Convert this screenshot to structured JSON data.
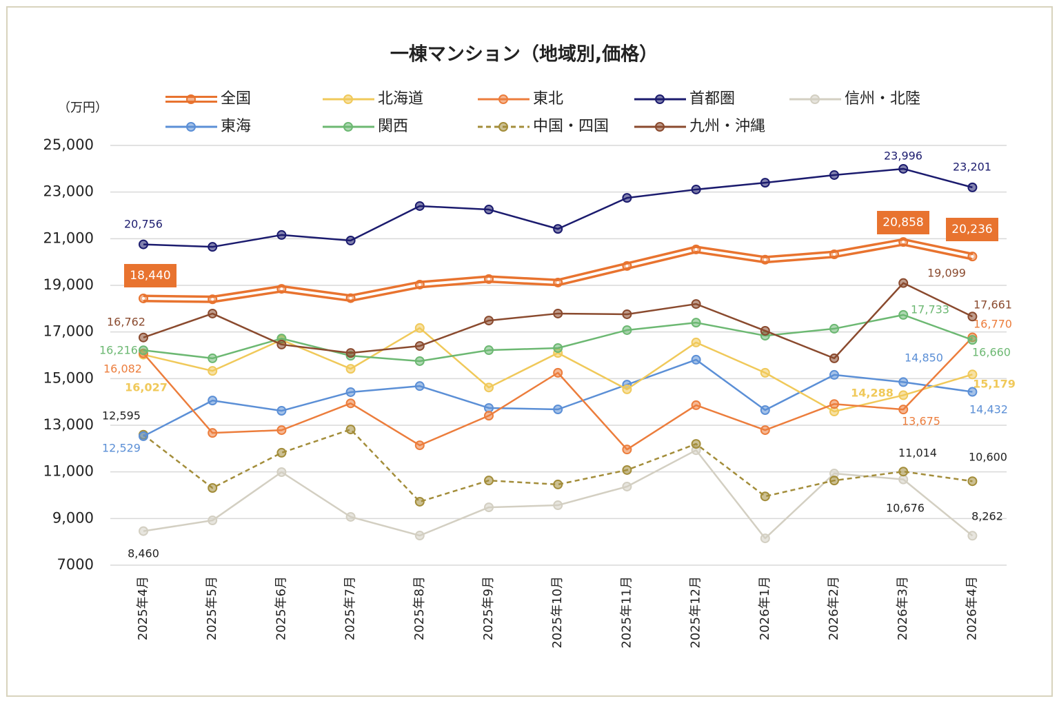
{
  "chart_data": {
    "type": "line",
    "title": "一棟マンション（地域別,価格）",
    "y_unit": "（万円）",
    "categories": [
      "2025年4月",
      "2025年5月",
      "2025年6月",
      "2025年7月",
      "2025年8月",
      "2025年9月",
      "2025年10月",
      "2025年11月",
      "2025年12月",
      "2026年1月",
      "2026年2月",
      "2026年3月",
      "2026年4月"
    ],
    "ylim": [
      7000,
      25000
    ],
    "yticks": [
      7000,
      {
        "value": 9000,
        "label": "9,000"
      },
      {
        "value": 11000,
        "label": "11,000"
      },
      {
        "value": 13000,
        "label": "13,000"
      },
      {
        "value": 15000,
        "label": "15,000"
      },
      {
        "value": 17000,
        "label": "17,000"
      },
      {
        "value": 19000,
        "label": "19,000"
      },
      {
        "value": 21000,
        "label": "21,000"
      },
      {
        "value": 23000,
        "label": "23,000"
      },
      {
        "value": 25000,
        "label": "25,000"
      }
    ],
    "grid": true,
    "series": [
      {
        "name": "全国",
        "color": "#e8732f",
        "style": "double",
        "values": [
          18440,
          18400,
          18850,
          18450,
          19030,
          19270,
          19120,
          19830,
          20540,
          20100,
          20330,
          20858,
          20236
        ],
        "value_labels": [
          "18,440",
          null,
          null,
          null,
          null,
          null,
          null,
          null,
          null,
          null,
          null,
          "20,858",
          "20,236"
        ]
      },
      {
        "name": "北海道",
        "color": "#f0c95a",
        "values": [
          16027,
          15330,
          16660,
          15420,
          17170,
          14620,
          16100,
          14540,
          16550,
          15250,
          13590,
          14288,
          15179
        ],
        "value_labels": [
          "16,027",
          null,
          null,
          null,
          null,
          null,
          null,
          null,
          null,
          null,
          null,
          "14,288",
          "15,179"
        ]
      },
      {
        "name": "東北",
        "color": "#ec7d3c",
        "values": [
          16082,
          12670,
          12790,
          13940,
          12140,
          13410,
          15250,
          11960,
          13860,
          12790,
          13910,
          13675,
          16770
        ],
        "value_labels": [
          "16,082",
          null,
          null,
          null,
          null,
          null,
          null,
          null,
          null,
          null,
          null,
          "13,675",
          "16,770"
        ]
      },
      {
        "name": "首都圏",
        "color": "#1b1b6e",
        "values": [
          20756,
          20650,
          21160,
          20920,
          22400,
          22250,
          21420,
          22750,
          23110,
          23400,
          23730,
          23996,
          23201
        ],
        "value_labels": [
          "20,756",
          null,
          null,
          null,
          null,
          null,
          null,
          null,
          null,
          null,
          null,
          "23,996",
          "23,201"
        ]
      },
      {
        "name": "信州・北陸",
        "color": "#d3cfc2",
        "values": [
          8460,
          8920,
          10990,
          9070,
          8270,
          9480,
          9570,
          10370,
          11930,
          8150,
          10930,
          10676,
          8262
        ],
        "value_labels": [
          "8,460",
          null,
          null,
          null,
          null,
          null,
          null,
          null,
          null,
          null,
          null,
          "10,676",
          "8,262"
        ]
      },
      {
        "name": "東海",
        "color": "#5b8fd6",
        "values": [
          12529,
          14060,
          13620,
          14420,
          14680,
          13740,
          13680,
          14740,
          15810,
          13650,
          15160,
          14850,
          14432
        ],
        "value_labels": [
          "12,529",
          null,
          null,
          null,
          null,
          null,
          null,
          null,
          null,
          null,
          null,
          "14,850",
          "14,432"
        ]
      },
      {
        "name": "関西",
        "color": "#6cb872",
        "values": [
          16216,
          15870,
          16720,
          15980,
          15750,
          16220,
          16310,
          17080,
          17400,
          16840,
          17140,
          17733,
          16660
        ],
        "value_labels": [
          "16,216",
          null,
          null,
          null,
          null,
          null,
          null,
          null,
          null,
          null,
          null,
          "17,733",
          "16,660"
        ]
      },
      {
        "name": "中国・四国",
        "color": "#a38d3a",
        "style": "dashed",
        "values": [
          12595,
          10310,
          11820,
          12820,
          9720,
          10630,
          10460,
          11080,
          12200,
          9950,
          10630,
          11014,
          10600
        ],
        "value_labels": [
          "12,595",
          null,
          null,
          null,
          null,
          null,
          null,
          null,
          null,
          null,
          null,
          "11,014",
          "10,600"
        ]
      },
      {
        "name": "九州・沖縄",
        "color": "#8a4a2e",
        "values": [
          16762,
          17790,
          16460,
          16100,
          16400,
          17490,
          17790,
          17760,
          18200,
          17050,
          15870,
          19099,
          17661
        ],
        "value_labels": [
          "16,762",
          null,
          null,
          null,
          null,
          null,
          null,
          null,
          null,
          null,
          null,
          "19,099",
          "17,661"
        ]
      }
    ]
  }
}
